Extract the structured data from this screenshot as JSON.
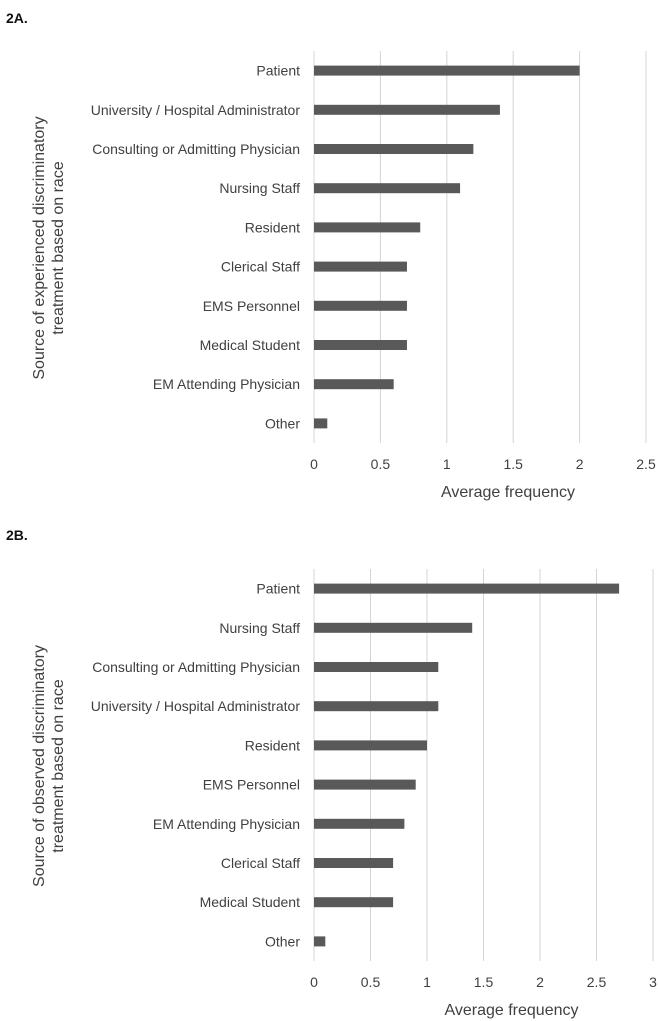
{
  "charts": [
    {
      "panel_label": "2A.",
      "chart_data": {
        "type": "bar",
        "orientation": "horizontal",
        "title": "",
        "xlabel": "Average frequency",
        "ylabel": "Source of experienced discriminatory treatment based on race",
        "ylabel_lines": [
          "Source of experienced discriminatory",
          "treatment based on race"
        ],
        "xlim": [
          0,
          2.5
        ],
        "xticks": [
          "0",
          "0.5",
          "1",
          "1.5",
          "2",
          "2.5"
        ],
        "grid": true,
        "categories": [
          "Patient",
          "University / Hospital Administrator",
          "Consulting or Admitting Physician",
          "Nursing Staff",
          "Resident",
          "Clerical Staff",
          "EMS Personnel",
          "Medical Student",
          "EM Attending Physician",
          "Other"
        ],
        "values": [
          2.0,
          1.4,
          1.2,
          1.1,
          0.8,
          0.7,
          0.7,
          0.7,
          0.6,
          0.1
        ],
        "bar_color": "#595959"
      }
    },
    {
      "panel_label": "2B.",
      "chart_data": {
        "type": "bar",
        "orientation": "horizontal",
        "title": "",
        "xlabel": "Average frequency",
        "ylabel": "Source of observed discriminatory treatment based on race",
        "ylabel_lines": [
          "Source of observed discriminatory",
          "treatment based on race"
        ],
        "xlim": [
          0,
          3
        ],
        "xticks": [
          "0",
          "0.5",
          "1",
          "1.5",
          "2",
          "2.5",
          "3"
        ],
        "grid": true,
        "categories": [
          "Patient",
          "Nursing Staff",
          "Consulting or Admitting Physician",
          "University / Hospital Administrator",
          "Resident",
          "EMS Personnel",
          "EM Attending Physician",
          "Clerical Staff",
          "Medical Student",
          "Other"
        ],
        "values": [
          2.7,
          1.4,
          1.1,
          1.1,
          1.0,
          0.9,
          0.8,
          0.7,
          0.7,
          0.1
        ],
        "bar_color": "#595959"
      }
    }
  ]
}
